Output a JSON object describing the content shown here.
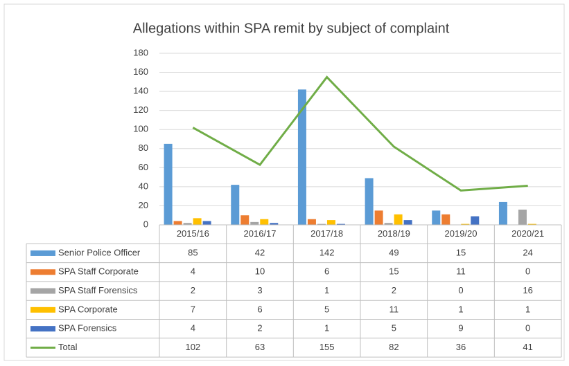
{
  "chart_data": {
    "type": "bar",
    "title": "Allegations within SPA remit by subject of complaint",
    "categories": [
      "2015/16",
      "2016/17",
      "2017/18",
      "2018/19",
      "2019/20",
      "2020/21"
    ],
    "series": [
      {
        "name": "Senior Police Officer",
        "color": "#5b9bd5",
        "values": [
          85,
          42,
          142,
          49,
          15,
          24
        ]
      },
      {
        "name": "SPA Staff Corporate",
        "color": "#ed7d31",
        "values": [
          4,
          10,
          6,
          15,
          11,
          0
        ]
      },
      {
        "name": "SPA Staff Forensics",
        "color": "#a5a5a5",
        "values": [
          2,
          3,
          1,
          2,
          0,
          16
        ]
      },
      {
        "name": "SPA Corporate",
        "color": "#ffc000",
        "values": [
          7,
          6,
          5,
          11,
          1,
          1
        ]
      },
      {
        "name": "SPA Forensics",
        "color": "#4472c4",
        "values": [
          4,
          2,
          1,
          5,
          9,
          0
        ]
      },
      {
        "name": "Total",
        "color": "#70ad47",
        "type": "line",
        "values": [
          102,
          63,
          155,
          82,
          36,
          41
        ]
      }
    ],
    "ylim": [
      0,
      180
    ],
    "yticks": [
      0,
      20,
      40,
      60,
      80,
      100,
      120,
      140,
      160,
      180
    ],
    "grid": true
  }
}
